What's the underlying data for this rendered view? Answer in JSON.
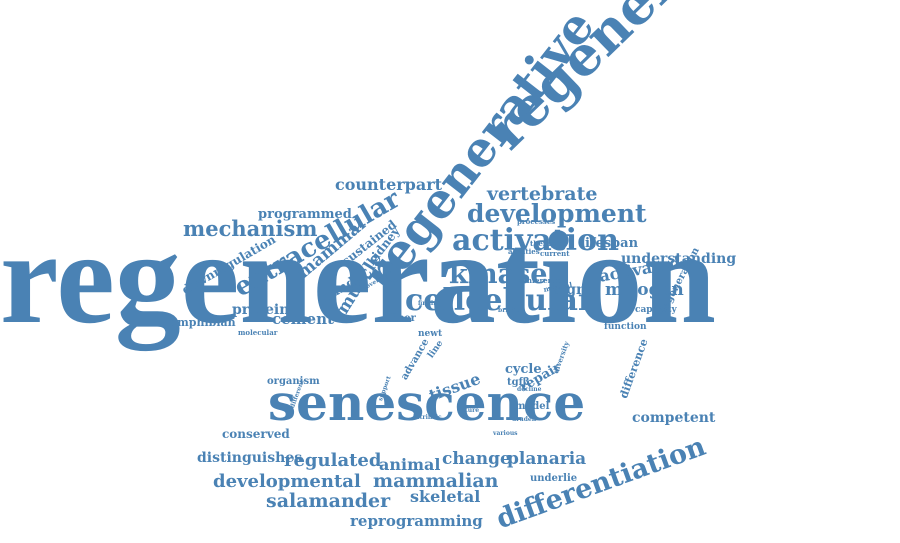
{
  "color": "#4a82b4",
  "words": [
    {
      "key": "regeneration",
      "text": "regeneration"
    },
    {
      "key": "regenerative_top",
      "text": "regenerative"
    },
    {
      "key": "regenerative_mid",
      "text": "regenerative"
    },
    {
      "key": "senescence",
      "text": "senescence"
    },
    {
      "key": "cellcellular",
      "text": "cellcellular"
    },
    {
      "key": "activation",
      "text": "activation"
    },
    {
      "key": "development",
      "text": "development"
    },
    {
      "key": "vertebrate",
      "text": "vertebrate"
    },
    {
      "key": "counterpart",
      "text": "counterpart"
    },
    {
      "key": "programmed",
      "text": "programmed"
    },
    {
      "key": "mechanism",
      "text": "mechanism"
    },
    {
      "key": "extracellular",
      "text": "extracellular"
    },
    {
      "key": "mammal",
      "text": "mammal"
    },
    {
      "key": "sustained",
      "text": "sustained"
    },
    {
      "key": "kidney",
      "text": "kidney"
    },
    {
      "key": "kinase",
      "text": "kinase"
    },
    {
      "key": "lifespan",
      "text": "lifespan"
    },
    {
      "key": "understanding",
      "text": "understanding"
    },
    {
      "key": "activated",
      "text": "activated"
    },
    {
      "key": "mitogen",
      "text": "mitogen"
    },
    {
      "key": "signal",
      "text": "signal"
    },
    {
      "key": "capacity",
      "text": "capacity"
    },
    {
      "key": "function",
      "text": "function"
    },
    {
      "key": "degeneration",
      "text": "degeneration"
    },
    {
      "key": "downregulation",
      "text": "downregulation"
    },
    {
      "key": "gland",
      "text": "gland"
    },
    {
      "key": "muscle",
      "text": "muscle"
    },
    {
      "key": "protein",
      "text": "protein"
    },
    {
      "key": "cement",
      "text": "cement"
    },
    {
      "key": "amphibian",
      "text": "amphibian"
    },
    {
      "key": "molecular",
      "text": "molecular"
    },
    {
      "key": "fiber",
      "text": "fiber"
    },
    {
      "key": "newt",
      "text": "newt"
    },
    {
      "key": "processes",
      "text": "processes"
    },
    {
      "key": "therapies",
      "text": "therapies"
    },
    {
      "key": "abilities",
      "text": "abilities"
    },
    {
      "key": "current",
      "text": "current"
    },
    {
      "key": "conference",
      "text": "conference"
    },
    {
      "key": "natural",
      "text": "natural"
    },
    {
      "key": "overview",
      "text": "overview"
    },
    {
      "key": "bright",
      "text": "bright"
    },
    {
      "key": "finding",
      "text": "finding"
    },
    {
      "key": "intrinsic",
      "text": "intrinsic"
    },
    {
      "key": "line",
      "text": "line"
    },
    {
      "key": "advance",
      "text": "advance"
    },
    {
      "key": "cycle",
      "text": "cycle"
    },
    {
      "key": "tgfb",
      "text": "tgfβ"
    },
    {
      "key": "repair",
      "text": "repair"
    },
    {
      "key": "tissue",
      "text": "tissue"
    },
    {
      "key": "difference",
      "text": "difference"
    },
    {
      "key": "diversity",
      "text": "diversity"
    },
    {
      "key": "organism",
      "text": "organism"
    },
    {
      "key": "support",
      "text": "support"
    },
    {
      "key": "different",
      "text": "different"
    },
    {
      "key": "future",
      "text": "future"
    },
    {
      "key": "model",
      "text": "model"
    },
    {
      "key": "druden",
      "text": "druden"
    },
    {
      "key": "decline",
      "text": "decline"
    },
    {
      "key": "various",
      "text": "various"
    },
    {
      "key": "competent",
      "text": "competent"
    },
    {
      "key": "conserved",
      "text": "conserved"
    },
    {
      "key": "distinguishes",
      "text": "distinguishes"
    },
    {
      "key": "regulated",
      "text": "regulated"
    },
    {
      "key": "animal",
      "text": "animal"
    },
    {
      "key": "change",
      "text": "change"
    },
    {
      "key": "planaria",
      "text": "planaria"
    },
    {
      "key": "underlie",
      "text": "underlie"
    },
    {
      "key": "developmental",
      "text": "developmental"
    },
    {
      "key": "mammalian",
      "text": "mammalian"
    },
    {
      "key": "differentiation",
      "text": "differentiation"
    },
    {
      "key": "salamander",
      "text": "salamander"
    },
    {
      "key": "skeletal",
      "text": "skeletal"
    },
    {
      "key": "reprogramming",
      "text": "reprogramming"
    }
  ]
}
